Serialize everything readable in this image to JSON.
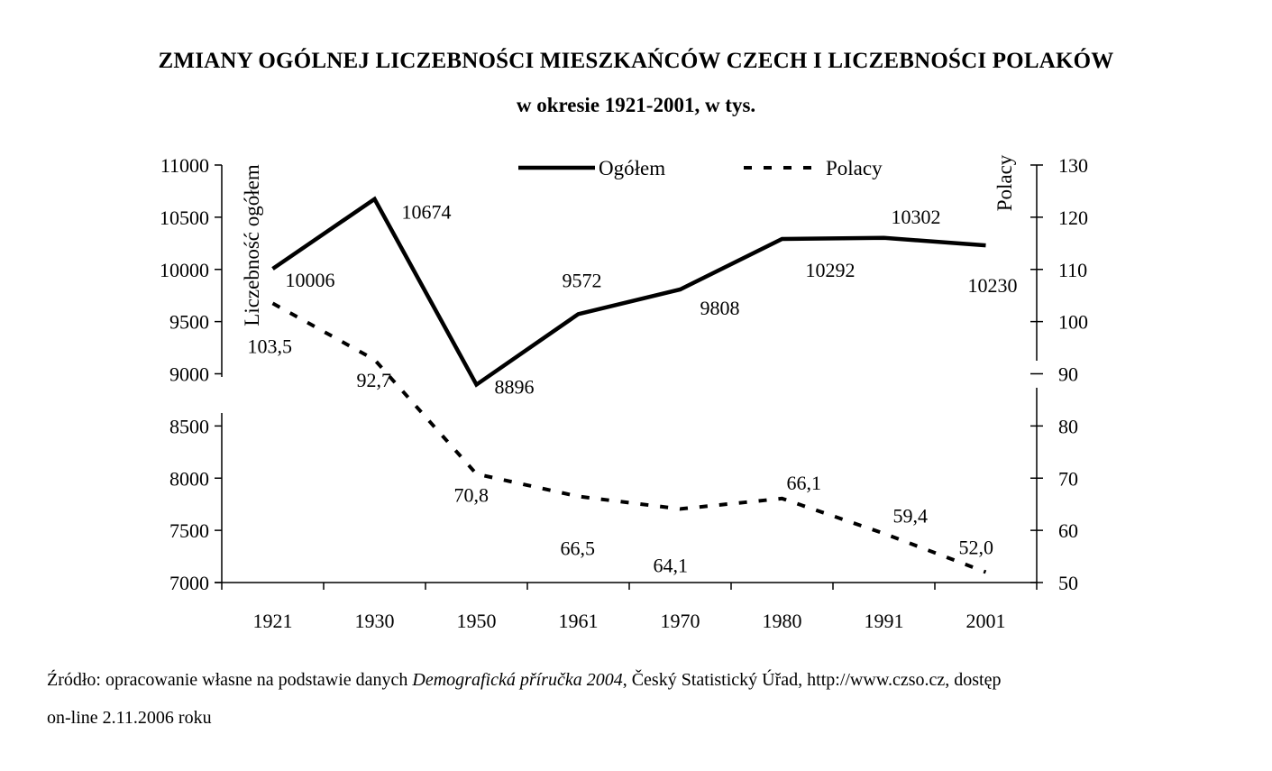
{
  "chart_data": {
    "type": "line",
    "title": "ZMIANY OGÓLNEJ LICZEBNOŚCI MIESZKAŃCÓW CZECH I LICZEBNOŚCI POLAKÓW",
    "subtitle": "w okresie 1921-2001, w tys.",
    "categories": [
      "1921",
      "1930",
      "1950",
      "1961",
      "1970",
      "1980",
      "1991",
      "2001"
    ],
    "y_left": {
      "label": "Liczebność ogółem",
      "lim": [
        7000,
        11000
      ],
      "ticks": [
        "7000",
        "7500",
        "8000",
        "8500",
        "9000",
        "9500",
        "10000",
        "10500",
        "11000"
      ]
    },
    "y_right": {
      "label": "Polacy",
      "lim": [
        50,
        130
      ],
      "ticks": [
        "50",
        "60",
        "70",
        "80",
        "90",
        "100",
        "110",
        "120",
        "130"
      ]
    },
    "series": [
      {
        "name": "Ogółem",
        "axis": "left",
        "style": "solid",
        "values": [
          10006,
          10674,
          8896,
          9572,
          9808,
          10292,
          10302,
          10230
        ],
        "labels": [
          "10006",
          "10674",
          "8896",
          "9572",
          "9808",
          "10292",
          "10302",
          "10230"
        ]
      },
      {
        "name": "Polacy",
        "axis": "right",
        "style": "dashed",
        "values": [
          103.5,
          92.7,
          70.8,
          66.5,
          64.1,
          66.1,
          59.4,
          52.0
        ],
        "labels": [
          "103,5",
          "92,7",
          "70,8",
          "66,5",
          "64,1",
          "66,1",
          "59,4",
          "52,0"
        ]
      }
    ],
    "legend_position": "top-center",
    "grid": false
  },
  "source": {
    "line1_prefix": "Źródło: opracowanie własne na podstawie danych ",
    "line1_italic": "Demografická příručka 2004",
    "line1_suffix": ", Český Statistický Úřad, http://www.czso.cz, dostęp",
    "line2": "on-line 2.11.2006 roku"
  },
  "colors": {
    "line": "#000000",
    "background": "#ffffff"
  }
}
